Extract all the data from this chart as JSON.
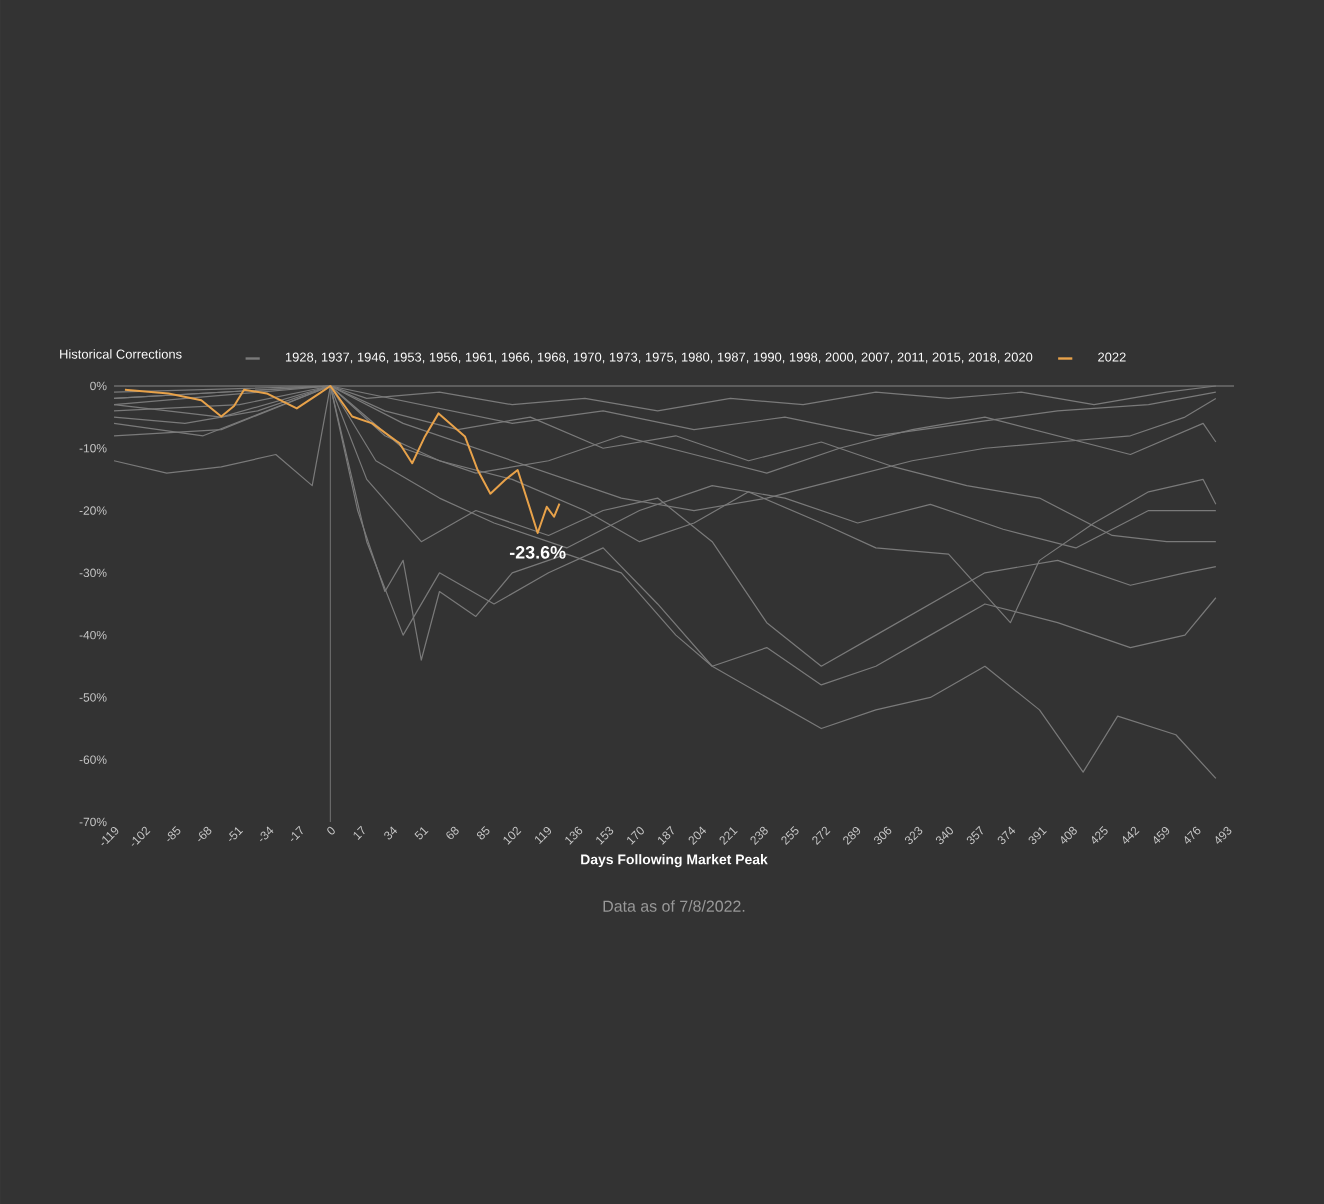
{
  "chart_data": {
    "type": "line",
    "title": "Historical Corrections",
    "xlabel": "Days Following Market Peak",
    "x": [
      -119,
      -90,
      -60,
      -30,
      -10,
      0,
      20,
      40,
      60,
      90,
      120,
      150,
      180,
      210,
      240,
      270,
      300,
      330,
      360,
      390,
      414,
      433,
      465,
      487
    ],
    "xlim": [
      -119,
      497
    ],
    "xticks": [
      -119,
      -102,
      -85,
      -68,
      -51,
      -34,
      -17,
      0,
      17,
      34,
      51,
      68,
      85,
      102,
      119,
      136,
      153,
      170,
      187,
      204,
      221,
      238,
      255,
      272,
      289,
      306,
      323,
      340,
      357,
      374,
      391,
      408,
      425,
      442,
      459,
      476,
      493
    ],
    "ylim": [
      -70,
      0
    ],
    "yticks": [
      {
        "value": 0,
        "label": "0%"
      },
      {
        "value": -10,
        "label": "-10%"
      },
      {
        "value": -20,
        "label": "-20%"
      },
      {
        "value": -30,
        "label": "-30%"
      },
      {
        "value": -40,
        "label": "-40%"
      },
      {
        "value": -50,
        "label": "-50%"
      },
      {
        "value": -60,
        "label": "-60%"
      },
      {
        "value": -70,
        "label": "-70%"
      }
    ],
    "legend": "top",
    "marker": "none",
    "line_style": "solid",
    "series": [
      {
        "name": "1928, 1937, 1946, 1953, 1956, 1961, 1966, 1968, 1970, 1973, 1975, 1980, 1987, 1990, 1998, 2000, 2007, 2011, 2015, 2018, 2020",
        "color": "#7a7a7a",
        "values": [
          -12,
          -14,
          -13,
          -11,
          -16,
          0,
          -25,
          -40,
          -30,
          -35,
          -30,
          -26,
          -35,
          -45,
          -50,
          -55,
          -52,
          -50,
          -45,
          -52,
          -62,
          -53,
          -56,
          -63
        ]
      },
      {
        "color": "#7a7a7a",
        "x": [
          -119,
          -80,
          -40,
          0,
          15,
          30,
          40,
          50,
          60,
          80,
          100,
          130,
          160,
          190,
          210,
          240,
          270,
          300,
          330,
          360,
          400,
          440,
          470,
          487
        ],
        "values": [
          -5,
          -6,
          -4,
          0,
          -20,
          -33,
          -28,
          -44,
          -33,
          -37,
          -30,
          -27,
          -30,
          -40,
          -45,
          -42,
          -48,
          -45,
          -40,
          -35,
          -38,
          -42,
          -40,
          -34
        ]
      },
      {
        "color": "#7a7a7a",
        "x": [
          -119,
          -60,
          0,
          20,
          50,
          80,
          120,
          150,
          180,
          210,
          240,
          270,
          300,
          330,
          360,
          400,
          440,
          470,
          487
        ],
        "values": [
          -8,
          -7,
          0,
          -15,
          -25,
          -20,
          -24,
          -20,
          -18,
          -25,
          -38,
          -45,
          -40,
          -35,
          -30,
          -28,
          -32,
          -30,
          -29
        ]
      },
      {
        "color": "#7a7a7a",
        "x": [
          -119,
          -50,
          0,
          30,
          60,
          100,
          140,
          170,
          200,
          230,
          270,
          300,
          340,
          374,
          390,
          420,
          450,
          480,
          487
        ],
        "values": [
          -4,
          -3,
          0,
          -8,
          -12,
          -15,
          -20,
          -25,
          -22,
          -17,
          -22,
          -26,
          -27,
          -38,
          -28,
          -22,
          -17,
          -15,
          -19
        ]
      },
      {
        "color": "#7a7a7a",
        "x": [
          -119,
          0,
          40,
          80,
          120,
          160,
          200,
          240,
          280,
          320,
          360,
          400,
          440,
          470,
          487
        ],
        "values": [
          -3,
          0,
          -6,
          -10,
          -14,
          -18,
          -20,
          -18,
          -15,
          -12,
          -10,
          -9,
          -8,
          -5,
          -2
        ]
      },
      {
        "color": "#7a7a7a",
        "x": [
          -119,
          0,
          30,
          70,
          110,
          150,
          190,
          230,
          270,
          310,
          350,
          390,
          430,
          460,
          487
        ],
        "values": [
          -2,
          0,
          -4,
          -7,
          -5,
          -10,
          -8,
          -12,
          -9,
          -13,
          -16,
          -18,
          -24,
          -25,
          -25
        ]
      },
      {
        "color": "#7a7a7a",
        "x": [
          -119,
          0,
          50,
          100,
          150,
          200,
          250,
          300,
          350,
          400,
          450,
          487
        ],
        "values": [
          -1,
          0,
          -3,
          -6,
          -4,
          -7,
          -5,
          -8,
          -6,
          -4,
          -3,
          -1
        ]
      },
      {
        "color": "#7a7a7a",
        "x": [
          -119,
          -60,
          0,
          40,
          80,
          120,
          160,
          200,
          240,
          280,
          320,
          360,
          400,
          440,
          480,
          487
        ],
        "values": [
          -3,
          -5,
          0,
          -10,
          -14,
          -12,
          -8,
          -11,
          -14,
          -10,
          -7,
          -5,
          -8,
          -11,
          -6,
          -9
        ]
      },
      {
        "color": "#7a7a7a",
        "x": [
          -119,
          -70,
          0,
          25,
          60,
          90,
          130,
          170,
          210,
          250,
          290,
          330,
          370,
          410,
          450,
          487
        ],
        "values": [
          -6,
          -8,
          0,
          -12,
          -18,
          -22,
          -26,
          -20,
          -16,
          -18,
          -22,
          -19,
          -23,
          -26,
          -20,
          -20
        ]
      },
      {
        "color": "#7a7a7a",
        "x": [
          -119,
          0,
          20,
          60,
          100,
          140,
          180,
          220,
          260,
          300,
          340,
          380,
          420,
          460,
          487
        ],
        "values": [
          -2,
          0,
          -2,
          -1,
          -3,
          -2,
          -4,
          -2,
          -3,
          -1,
          -2,
          -1,
          -3,
          -1,
          0
        ]
      },
      {
        "name": "2022",
        "color": "#e8a24a",
        "x": [
          -113,
          -89,
          -71,
          -60,
          -53,
          -47.5,
          -35,
          -18.5,
          -6,
          0,
          12,
          23,
          38,
          45,
          52,
          59.5,
          74,
          81,
          88,
          96,
          103,
          110,
          114,
          119,
          123,
          126
        ],
        "values": [
          -0.6,
          -1.2,
          -2.3,
          -4.9,
          -3.2,
          -0.6,
          -1.2,
          -3.6,
          -1.2,
          0,
          -4.9,
          -6,
          -9.2,
          -12.4,
          -8.1,
          -4.4,
          -8.1,
          -13.5,
          -17.3,
          -15.1,
          -13.5,
          -19.9,
          -23.6,
          -19.4,
          -21,
          -18.9
        ]
      }
    ],
    "ref_lines": [
      {
        "axis": "x",
        "value": 0,
        "color": "#6a6a6a"
      },
      {
        "axis": "y",
        "value": 0,
        "color": "#8a8a8a"
      }
    ],
    "annotations": [
      {
        "text": "-23.6%",
        "x": 114,
        "y": -23.6
      },
      "Data as of 7/8/2022."
    ]
  }
}
